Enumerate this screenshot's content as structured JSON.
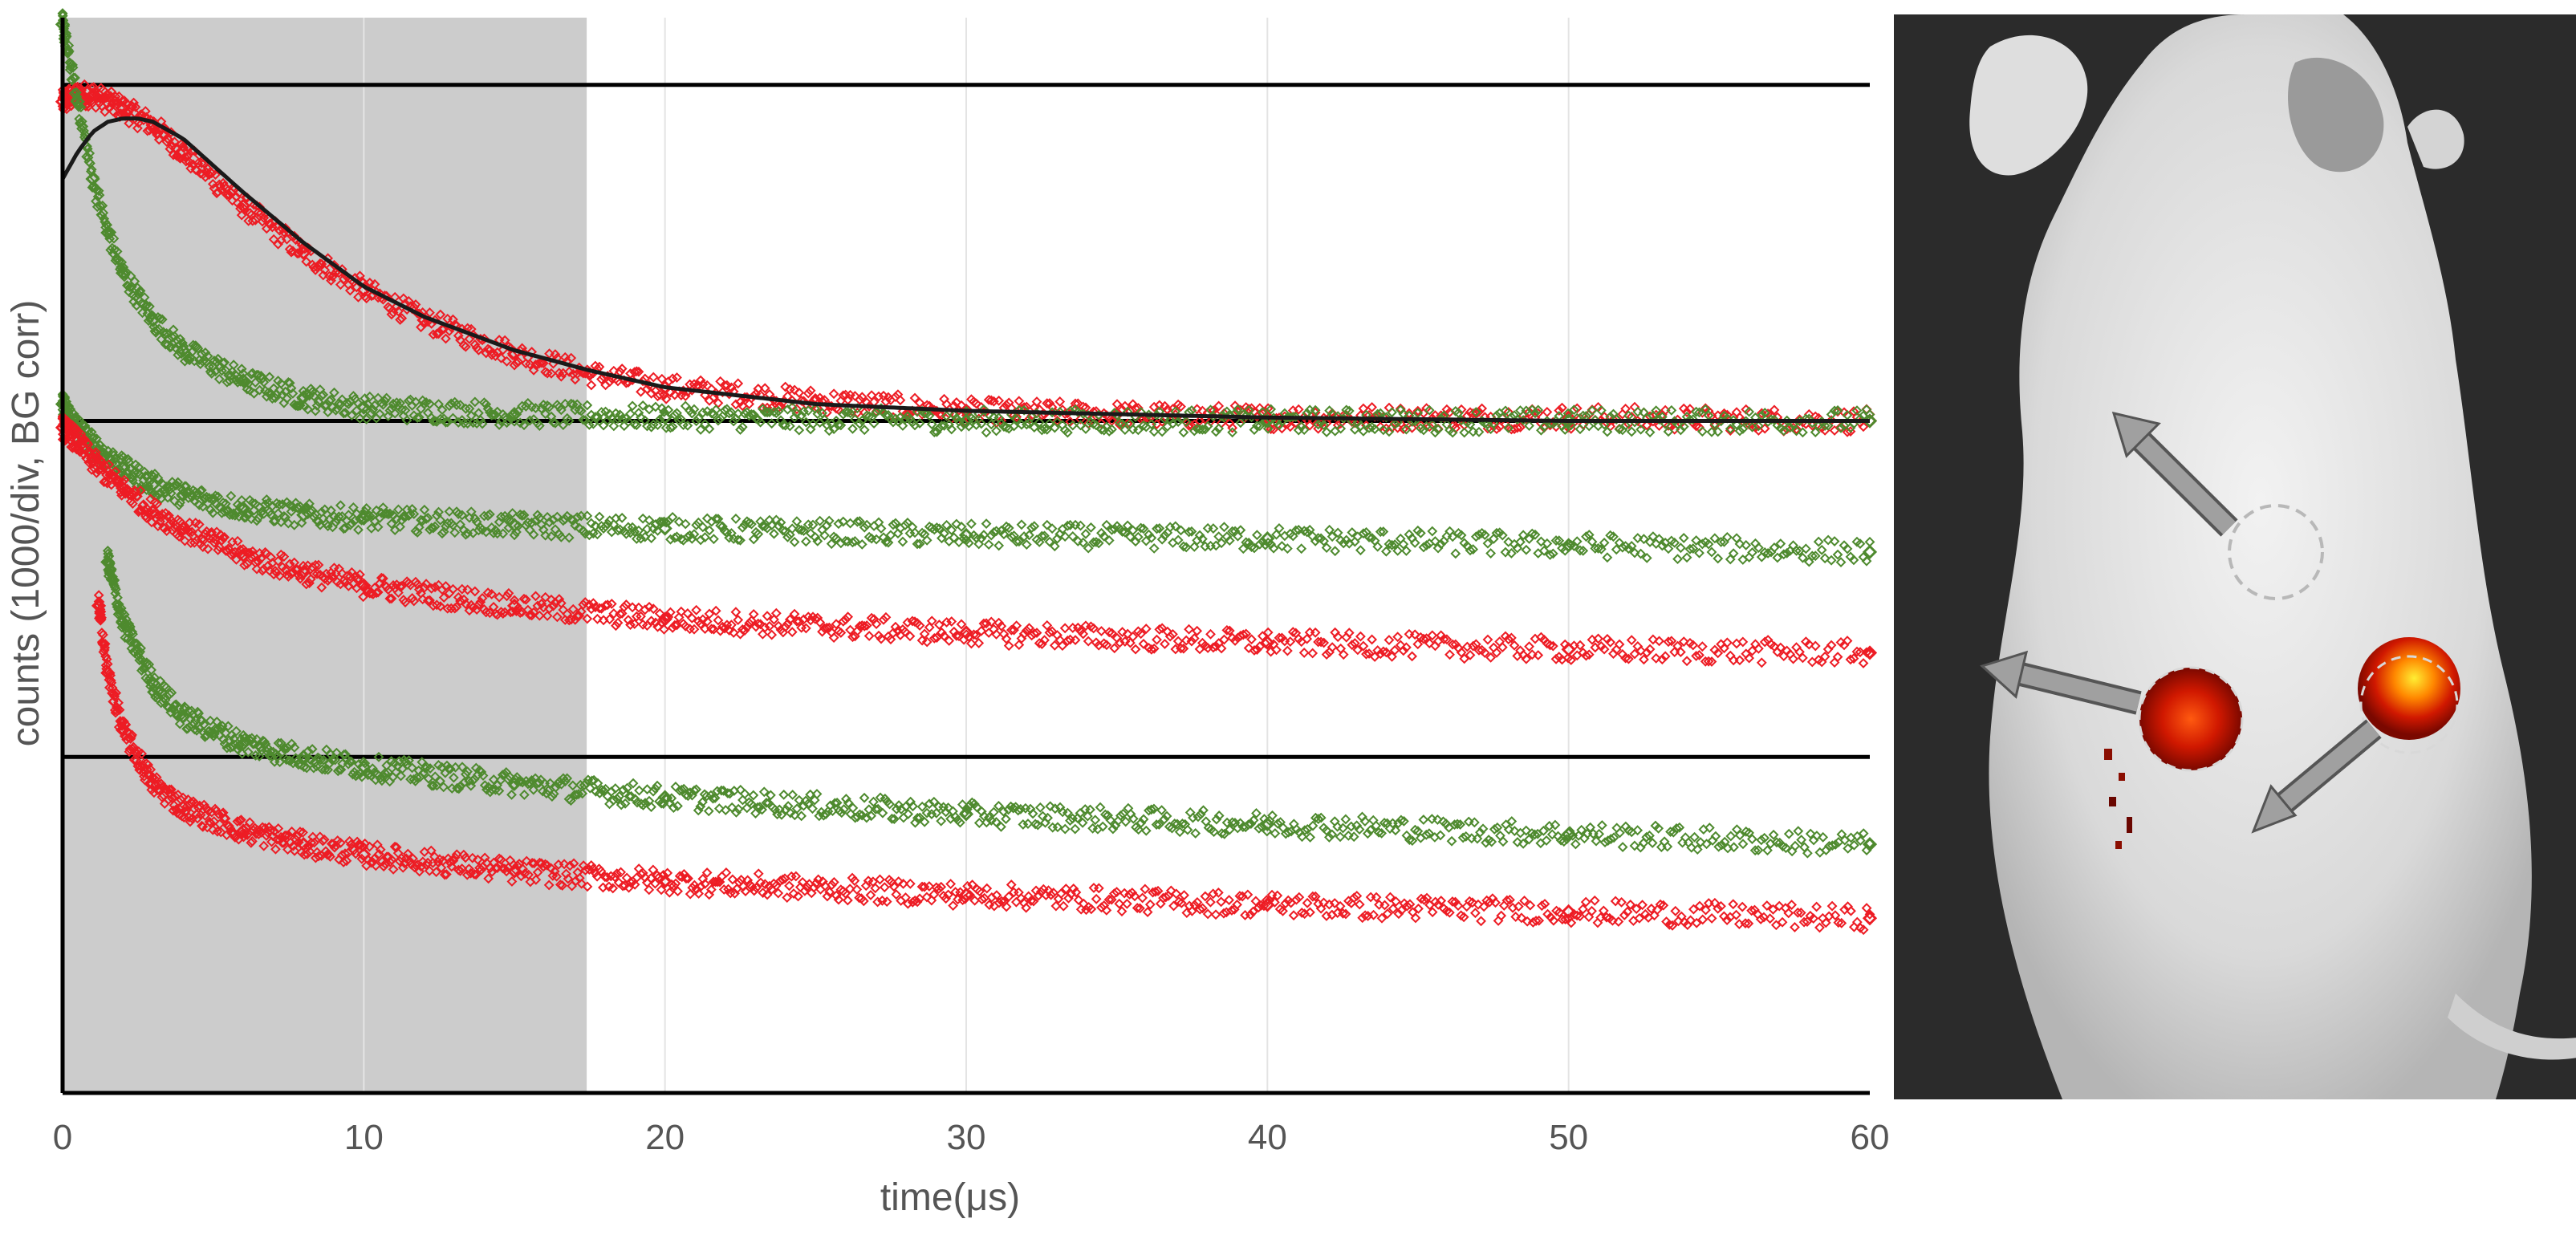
{
  "chart_data": {
    "type": "scatter",
    "title": "",
    "xlabel": "time(μs)",
    "ylabel": "counts (1000/div, BG corr)",
    "xlim": [
      0,
      60
    ],
    "x_ticks": [
      "0",
      "10",
      "20",
      "30",
      "40",
      "50",
      "60"
    ],
    "x_tick_values": [
      0,
      10,
      20,
      30,
      40,
      50,
      60
    ],
    "grid": "vertical",
    "ylim": [
      -2.0,
      1.2
    ],
    "y_ticks": [],
    "baselines": [
      1.0,
      0.0,
      -1.0
    ],
    "shaded_region": {
      "x_start": 0,
      "x_end": 17.4,
      "color": "#cccccc"
    },
    "series": [
      {
        "panel": "top",
        "color": "#ed1c24",
        "marker": "diamond-open",
        "x": [
          0,
          0.5,
          1,
          2,
          3,
          4,
          6,
          8,
          10,
          12,
          15,
          17.5,
          20,
          25,
          30,
          35,
          40,
          50,
          60
        ],
        "values": [
          0.95,
          0.97,
          0.97,
          0.93,
          0.88,
          0.8,
          0.64,
          0.5,
          0.39,
          0.3,
          0.2,
          0.14,
          0.1,
          0.06,
          0.03,
          0.02,
          0.01,
          0.01,
          0.0
        ]
      },
      {
        "panel": "top",
        "color": "#4e8a2e",
        "marker": "diamond-open",
        "x": [
          0,
          0.5,
          1,
          1.5,
          2,
          3,
          4,
          6,
          8,
          10,
          15,
          20,
          30,
          40,
          50,
          60
        ],
        "values": [
          1.18,
          0.95,
          0.72,
          0.56,
          0.44,
          0.3,
          0.21,
          0.12,
          0.07,
          0.04,
          0.02,
          0.01,
          0.0,
          0.0,
          0.0,
          0.0
        ]
      },
      {
        "panel": "middle",
        "color": "#4e8a2e",
        "marker": "diamond-open",
        "x": [
          0,
          0.5,
          1,
          2,
          3,
          4,
          6,
          8,
          10,
          15,
          20,
          30,
          40,
          50,
          60
        ],
        "values": [
          0.05,
          -0.02,
          -0.07,
          -0.14,
          -0.19,
          -0.22,
          -0.26,
          -0.28,
          -0.29,
          -0.31,
          -0.32,
          -0.34,
          -0.35,
          -0.37,
          -0.39
        ]
      },
      {
        "panel": "middle",
        "color": "#ed1c24",
        "marker": "diamond-open",
        "x": [
          0,
          0.5,
          1,
          2,
          3,
          4,
          6,
          8,
          10,
          15,
          20,
          30,
          40,
          50,
          60
        ],
        "values": [
          -0.02,
          -0.06,
          -0.12,
          -0.2,
          -0.27,
          -0.32,
          -0.4,
          -0.45,
          -0.49,
          -0.55,
          -0.59,
          -0.63,
          -0.66,
          -0.68,
          -0.69
        ]
      },
      {
        "panel": "bottom",
        "color": "#4e8a2e",
        "marker": "diamond-open",
        "x": [
          1.5,
          2,
          3,
          4,
          6,
          8,
          10,
          15,
          20,
          30,
          40,
          50,
          60
        ],
        "values": [
          -0.42,
          -0.6,
          -0.78,
          -0.88,
          -0.96,
          -1.0,
          -1.03,
          -1.08,
          -1.12,
          -1.17,
          -1.2,
          -1.23,
          -1.26
        ]
      },
      {
        "panel": "bottom",
        "color": "#ed1c24",
        "marker": "diamond-open",
        "x": [
          1.2,
          1.5,
          2,
          3,
          4,
          6,
          8,
          10,
          15,
          20,
          30,
          40,
          50,
          60
        ],
        "values": [
          -0.55,
          -0.75,
          -0.92,
          -1.08,
          -1.15,
          -1.22,
          -1.26,
          -1.29,
          -1.34,
          -1.37,
          -1.41,
          -1.44,
          -1.46,
          -1.48
        ]
      }
    ],
    "fit_curve": {
      "panel": "top",
      "color": "#1a1a1a",
      "x": [
        0,
        0.5,
        1,
        1.5,
        2,
        2.5,
        3,
        4,
        5,
        6,
        8,
        10,
        12,
        15,
        17.5,
        20,
        25,
        30,
        40,
        50,
        60
      ],
      "values": [
        0.72,
        0.8,
        0.86,
        0.89,
        0.9,
        0.9,
        0.89,
        0.84,
        0.76,
        0.68,
        0.53,
        0.4,
        0.31,
        0.21,
        0.15,
        0.1,
        0.05,
        0.03,
        0.01,
        0.0,
        0.0
      ]
    }
  },
  "image_panel": {
    "subject": "mouse-luminescence-image",
    "background_color": "#2a2a2a",
    "arrow_color": "#9a9a9a",
    "hotspot_colors": [
      "#cc1100",
      "#ff6600",
      "#ffee33"
    ]
  }
}
